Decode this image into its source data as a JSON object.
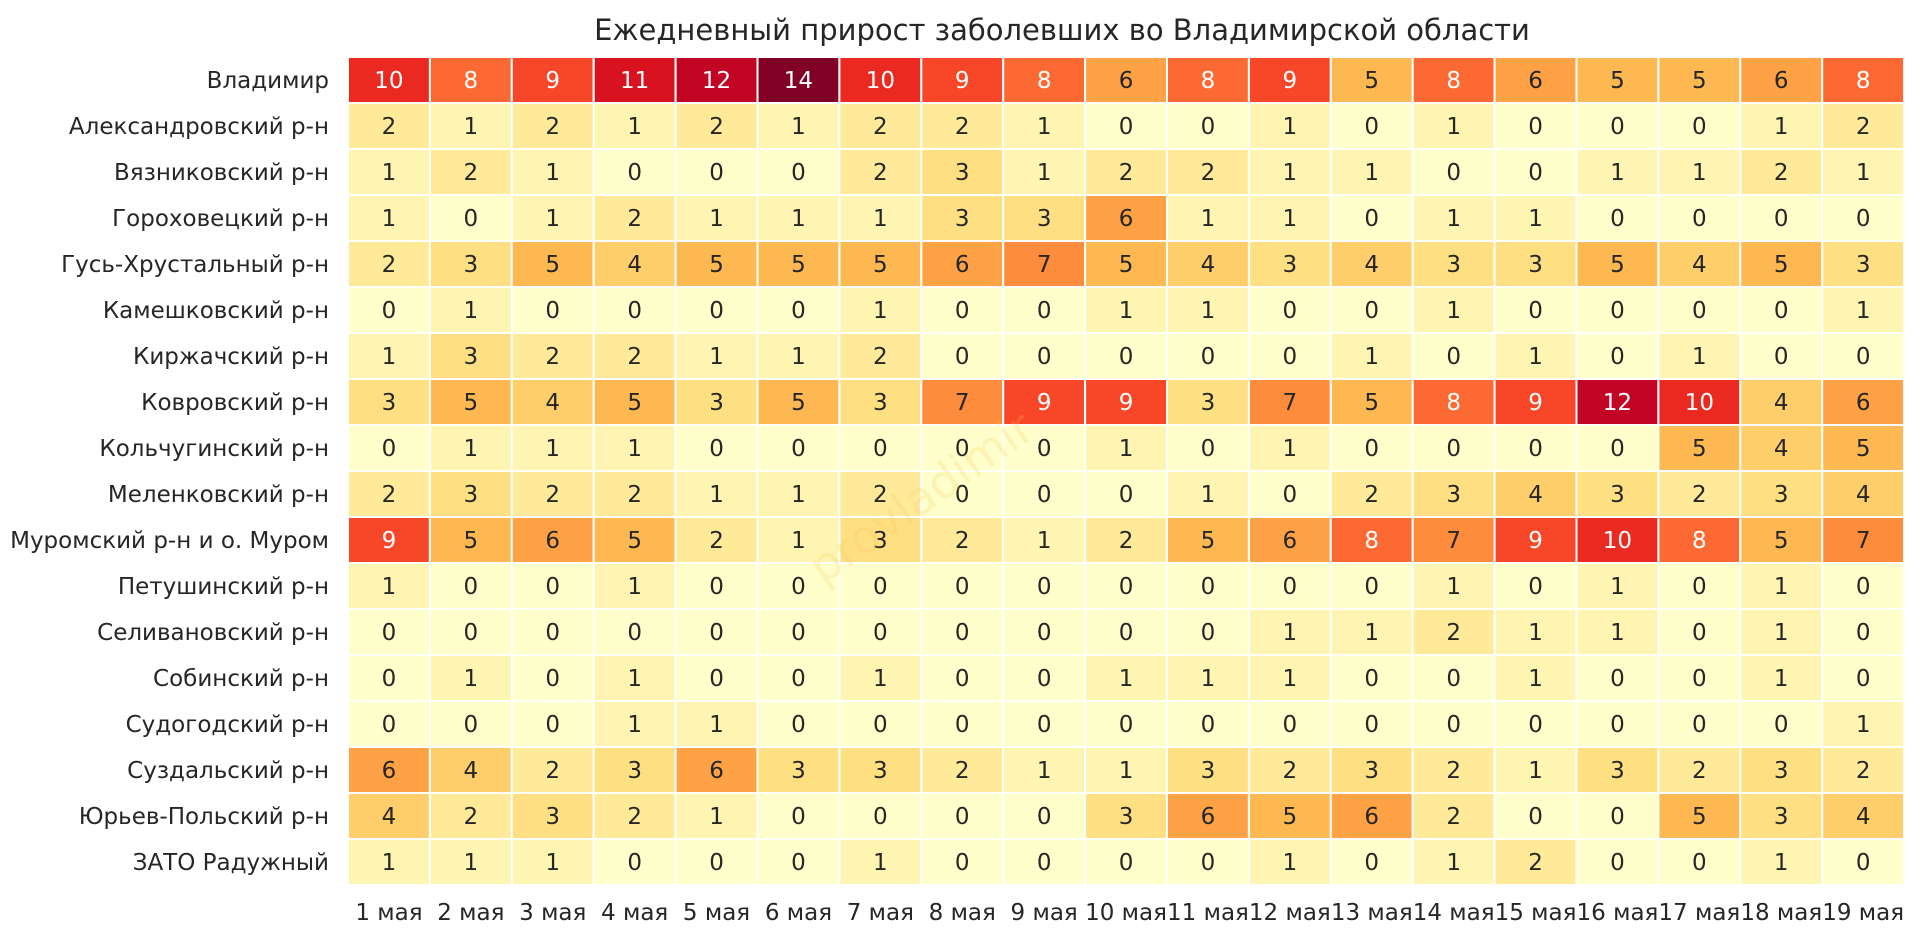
{
  "chart_data": {
    "type": "heatmap",
    "title": "Ежедневный прирост заболевших во Владимирской области",
    "columns": [
      "1 мая",
      "2 мая",
      "3 мая",
      "4 мая",
      "5 мая",
      "6 мая",
      "7 мая",
      "8 мая",
      "9 мая",
      "10 мая",
      "11 мая",
      "12 мая",
      "13 мая",
      "14 мая",
      "15 мая",
      "16 мая",
      "17 мая",
      "18 мая",
      "19 мая"
    ],
    "rows": [
      "Владимир",
      "Александровский р-н",
      "Вязниковский р-н",
      "Гороховецкий р-н",
      "Гусь-Хрустальный р-н",
      "Камешковский р-н",
      "Киржачский р-н",
      "Ковровский р-н",
      "Кольчугинский р-н",
      "Меленковский р-н",
      "Муромский р-н и о. Муром",
      "Петушинский р-н",
      "Селивановский р-н",
      "Собинский р-н",
      "Судогодский р-н",
      "Суздальский р-н",
      "Юрьев-Польский р-н",
      "ЗАТО Радужный"
    ],
    "values": [
      [
        10,
        8,
        9,
        11,
        12,
        14,
        10,
        9,
        8,
        6,
        8,
        9,
        5,
        8,
        6,
        5,
        5,
        6,
        8
      ],
      [
        2,
        1,
        2,
        1,
        2,
        1,
        2,
        2,
        1,
        0,
        0,
        1,
        0,
        1,
        0,
        0,
        0,
        1,
        2
      ],
      [
        1,
        2,
        1,
        0,
        0,
        0,
        2,
        3,
        1,
        2,
        2,
        1,
        1,
        0,
        0,
        1,
        1,
        2,
        1
      ],
      [
        1,
        0,
        1,
        2,
        1,
        1,
        1,
        3,
        3,
        6,
        1,
        1,
        0,
        1,
        1,
        0,
        0,
        0,
        0
      ],
      [
        2,
        3,
        5,
        4,
        5,
        5,
        5,
        6,
        7,
        5,
        4,
        3,
        4,
        3,
        3,
        5,
        4,
        5,
        3
      ],
      [
        0,
        1,
        0,
        0,
        0,
        0,
        1,
        0,
        0,
        1,
        1,
        0,
        0,
        1,
        0,
        0,
        0,
        0,
        1
      ],
      [
        1,
        3,
        2,
        2,
        1,
        1,
        2,
        0,
        0,
        0,
        0,
        0,
        1,
        0,
        1,
        0,
        1,
        0,
        0
      ],
      [
        3,
        5,
        4,
        5,
        3,
        5,
        3,
        7,
        9,
        9,
        3,
        7,
        5,
        8,
        9,
        12,
        10,
        4,
        6
      ],
      [
        0,
        1,
        1,
        1,
        0,
        0,
        0,
        0,
        0,
        1,
        0,
        1,
        0,
        0,
        0,
        0,
        5,
        4,
        5
      ],
      [
        2,
        3,
        2,
        2,
        1,
        1,
        2,
        0,
        0,
        0,
        1,
        0,
        2,
        3,
        4,
        3,
        2,
        3,
        4
      ],
      [
        9,
        5,
        6,
        5,
        2,
        1,
        3,
        2,
        1,
        2,
        5,
        6,
        8,
        7,
        9,
        10,
        8,
        5,
        7
      ],
      [
        1,
        0,
        0,
        1,
        0,
        0,
        0,
        0,
        0,
        0,
        0,
        0,
        0,
        1,
        0,
        1,
        0,
        1,
        0
      ],
      [
        0,
        0,
        0,
        0,
        0,
        0,
        0,
        0,
        0,
        0,
        0,
        1,
        1,
        2,
        1,
        1,
        0,
        1,
        0
      ],
      [
        0,
        1,
        0,
        1,
        0,
        0,
        1,
        0,
        0,
        1,
        1,
        1,
        0,
        0,
        1,
        0,
        0,
        1,
        0
      ],
      [
        0,
        0,
        0,
        1,
        1,
        0,
        0,
        0,
        0,
        0,
        0,
        0,
        0,
        0,
        0,
        0,
        0,
        0,
        1
      ],
      [
        6,
        4,
        2,
        3,
        6,
        3,
        3,
        2,
        1,
        1,
        3,
        2,
        3,
        2,
        1,
        3,
        2,
        3,
        2
      ],
      [
        4,
        2,
        3,
        2,
        1,
        0,
        0,
        0,
        0,
        3,
        6,
        5,
        6,
        2,
        0,
        0,
        5,
        3,
        4
      ],
      [
        1,
        1,
        1,
        0,
        0,
        0,
        1,
        0,
        0,
        0,
        0,
        1,
        0,
        1,
        2,
        0,
        0,
        1,
        0
      ]
    ],
    "colormap": "YlOrRd",
    "vmin": 0,
    "vmax": 14
  },
  "watermark": "provladimir"
}
